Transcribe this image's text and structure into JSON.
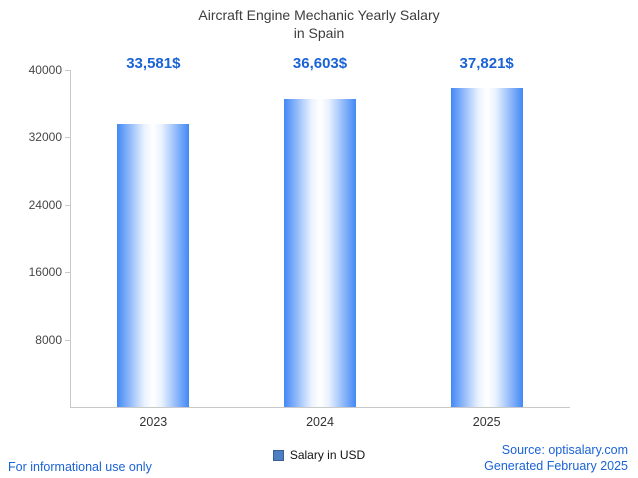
{
  "title": {
    "line1": "Aircraft Engine Mechanic Yearly Salary",
    "line2": "in Spain"
  },
  "chart_data": {
    "type": "bar",
    "title": "Aircraft Engine Mechanic Yearly Salary in Spain",
    "categories": [
      "2023",
      "2024",
      "2025"
    ],
    "values": [
      33581,
      36603,
      37821
    ],
    "value_labels": [
      "33,581$",
      "36,603$",
      "37,821$"
    ],
    "xlabel": "",
    "ylabel": "",
    "ylim": [
      0,
      40000
    ],
    "yticks": [
      8000,
      16000,
      24000,
      32000,
      40000
    ],
    "grid": false,
    "legend_entries": [
      "Salary in USD"
    ],
    "legend_position": "bottom-center"
  },
  "legend": {
    "label": "Salary in USD"
  },
  "footer": {
    "left_note": "For informational use only",
    "source": "Source: optisalary.com",
    "generated": "Generated February 2025"
  },
  "colors": {
    "accent_text": "#1a63d6",
    "bar_edge": "#4288f5",
    "bar_center": "#ffffff",
    "legend_fill": "#4d7ec2",
    "legend_border": "#3a5f94",
    "axis": "#c9c9c9",
    "title_text": "#3d3d3d"
  }
}
